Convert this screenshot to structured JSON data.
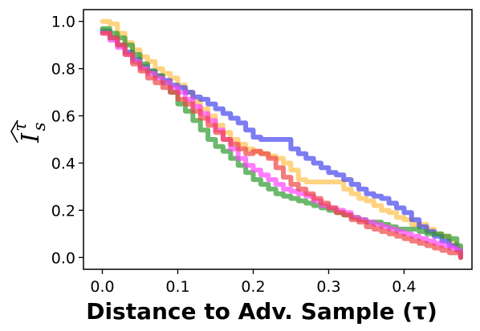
{
  "chart_data": {
    "type": "line",
    "xlabel": "Distance to Adv. Sample (τ)",
    "ylabel": {
      "main": "I",
      "superscript": "τ",
      "subscript": "s"
    },
    "xlim": [
      -0.025,
      0.49
    ],
    "ylim": [
      -0.05,
      1.05
    ],
    "x_ticks": [
      "0.0",
      "0.1",
      "0.2",
      "0.3",
      "0.4"
    ],
    "y_ticks": [
      "0.0",
      "0.2",
      "0.4",
      "0.6",
      "0.8",
      "1.0"
    ],
    "grid": false,
    "series": [
      {
        "color": "#ffc04d",
        "x": [
          0.0,
          0.01,
          0.02,
          0.03,
          0.04,
          0.05,
          0.06,
          0.07,
          0.08,
          0.09,
          0.1,
          0.11,
          0.12,
          0.13,
          0.14,
          0.15,
          0.16,
          0.17,
          0.18,
          0.19,
          0.2,
          0.21,
          0.22,
          0.23,
          0.24,
          0.25,
          0.26,
          0.27,
          0.28,
          0.29,
          0.3,
          0.31,
          0.32,
          0.33,
          0.34,
          0.35,
          0.36,
          0.37,
          0.38,
          0.39,
          0.4,
          0.41,
          0.42,
          0.43,
          0.44,
          0.45,
          0.46,
          0.47,
          0.475
        ],
        "y": [
          1.0,
          0.99,
          0.95,
          0.91,
          0.88,
          0.85,
          0.83,
          0.8,
          0.78,
          0.76,
          0.73,
          0.7,
          0.66,
          0.63,
          0.6,
          0.56,
          0.53,
          0.5,
          0.48,
          0.46,
          0.45,
          0.44,
          0.43,
          0.42,
          0.4,
          0.37,
          0.33,
          0.32,
          0.32,
          0.32,
          0.32,
          0.32,
          0.29,
          0.27,
          0.25,
          0.24,
          0.22,
          0.2,
          0.19,
          0.17,
          0.16,
          0.14,
          0.14,
          0.12,
          0.1,
          0.09,
          0.06,
          0.04,
          0.0
        ]
      },
      {
        "color": "#4444ee",
        "x": [
          0.0,
          0.01,
          0.02,
          0.03,
          0.04,
          0.05,
          0.06,
          0.07,
          0.08,
          0.09,
          0.1,
          0.11,
          0.12,
          0.13,
          0.14,
          0.15,
          0.16,
          0.17,
          0.18,
          0.19,
          0.2,
          0.21,
          0.22,
          0.23,
          0.24,
          0.25,
          0.26,
          0.27,
          0.28,
          0.29,
          0.3,
          0.31,
          0.32,
          0.33,
          0.34,
          0.35,
          0.36,
          0.37,
          0.38,
          0.39,
          0.4,
          0.41,
          0.42,
          0.43,
          0.44,
          0.45,
          0.46,
          0.47,
          0.475
        ],
        "y": [
          0.96,
          0.93,
          0.9,
          0.87,
          0.84,
          0.81,
          0.79,
          0.77,
          0.75,
          0.73,
          0.72,
          0.7,
          0.68,
          0.67,
          0.65,
          0.63,
          0.61,
          0.59,
          0.57,
          0.54,
          0.51,
          0.5,
          0.5,
          0.5,
          0.5,
          0.46,
          0.44,
          0.42,
          0.4,
          0.38,
          0.36,
          0.35,
          0.33,
          0.31,
          0.29,
          0.27,
          0.26,
          0.25,
          0.23,
          0.21,
          0.19,
          0.16,
          0.13,
          0.11,
          0.09,
          0.07,
          0.05,
          0.03,
          0.0
        ]
      },
      {
        "color": "#2e9a2e",
        "x": [
          0.0,
          0.01,
          0.02,
          0.03,
          0.04,
          0.05,
          0.06,
          0.07,
          0.08,
          0.09,
          0.1,
          0.11,
          0.12,
          0.13,
          0.14,
          0.15,
          0.16,
          0.17,
          0.18,
          0.19,
          0.2,
          0.21,
          0.22,
          0.23,
          0.24,
          0.25,
          0.26,
          0.27,
          0.28,
          0.29,
          0.3,
          0.31,
          0.32,
          0.33,
          0.34,
          0.35,
          0.36,
          0.37,
          0.38,
          0.39,
          0.4,
          0.41,
          0.42,
          0.43,
          0.44,
          0.45,
          0.46,
          0.47,
          0.475
        ],
        "y": [
          0.97,
          0.95,
          0.93,
          0.9,
          0.86,
          0.82,
          0.79,
          0.77,
          0.74,
          0.7,
          0.65,
          0.62,
          0.58,
          0.54,
          0.5,
          0.47,
          0.45,
          0.42,
          0.39,
          0.36,
          0.33,
          0.31,
          0.29,
          0.27,
          0.26,
          0.25,
          0.24,
          0.23,
          0.22,
          0.21,
          0.2,
          0.19,
          0.18,
          0.17,
          0.16,
          0.15,
          0.15,
          0.14,
          0.13,
          0.12,
          0.12,
          0.12,
          0.11,
          0.1,
          0.1,
          0.09,
          0.08,
          0.05,
          0.0
        ]
      },
      {
        "color": "#ff44ff",
        "x": [
          0.0,
          0.01,
          0.02,
          0.03,
          0.04,
          0.05,
          0.06,
          0.07,
          0.08,
          0.09,
          0.1,
          0.11,
          0.12,
          0.13,
          0.14,
          0.15,
          0.16,
          0.17,
          0.18,
          0.19,
          0.2,
          0.21,
          0.22,
          0.23,
          0.24,
          0.25,
          0.26,
          0.27,
          0.28,
          0.29,
          0.3,
          0.31,
          0.32,
          0.33,
          0.34,
          0.35,
          0.36,
          0.37,
          0.38,
          0.39,
          0.4,
          0.41,
          0.42,
          0.43,
          0.44,
          0.45,
          0.46,
          0.47,
          0.475
        ],
        "y": [
          0.95,
          0.92,
          0.89,
          0.86,
          0.83,
          0.8,
          0.78,
          0.76,
          0.74,
          0.72,
          0.7,
          0.67,
          0.64,
          0.61,
          0.58,
          0.54,
          0.5,
          0.46,
          0.42,
          0.39,
          0.37,
          0.35,
          0.33,
          0.31,
          0.29,
          0.28,
          0.27,
          0.26,
          0.24,
          0.22,
          0.21,
          0.2,
          0.19,
          0.17,
          0.16,
          0.15,
          0.14,
          0.13,
          0.12,
          0.11,
          0.1,
          0.09,
          0.08,
          0.07,
          0.06,
          0.05,
          0.04,
          0.03,
          0.0
        ]
      },
      {
        "color": "#ee4444",
        "x": [
          0.0,
          0.01,
          0.02,
          0.03,
          0.04,
          0.05,
          0.06,
          0.07,
          0.08,
          0.09,
          0.1,
          0.11,
          0.12,
          0.13,
          0.14,
          0.15,
          0.16,
          0.17,
          0.18,
          0.19,
          0.2,
          0.21,
          0.22,
          0.23,
          0.24,
          0.25,
          0.26,
          0.27,
          0.28,
          0.29,
          0.3,
          0.31,
          0.32,
          0.33,
          0.34,
          0.35,
          0.36,
          0.37,
          0.38,
          0.39,
          0.4,
          0.41,
          0.42,
          0.43,
          0.44,
          0.45,
          0.46,
          0.47,
          0.475
        ],
        "y": [
          0.95,
          0.93,
          0.9,
          0.86,
          0.82,
          0.79,
          0.76,
          0.74,
          0.72,
          0.7,
          0.67,
          0.65,
          0.62,
          0.59,
          0.56,
          0.53,
          0.5,
          0.48,
          0.46,
          0.44,
          0.45,
          0.44,
          0.42,
          0.38,
          0.34,
          0.31,
          0.29,
          0.27,
          0.25,
          0.23,
          0.21,
          0.19,
          0.18,
          0.16,
          0.15,
          0.13,
          0.12,
          0.11,
          0.1,
          0.09,
          0.08,
          0.07,
          0.06,
          0.05,
          0.04,
          0.03,
          0.02,
          0.02,
          0.0
        ]
      }
    ]
  }
}
